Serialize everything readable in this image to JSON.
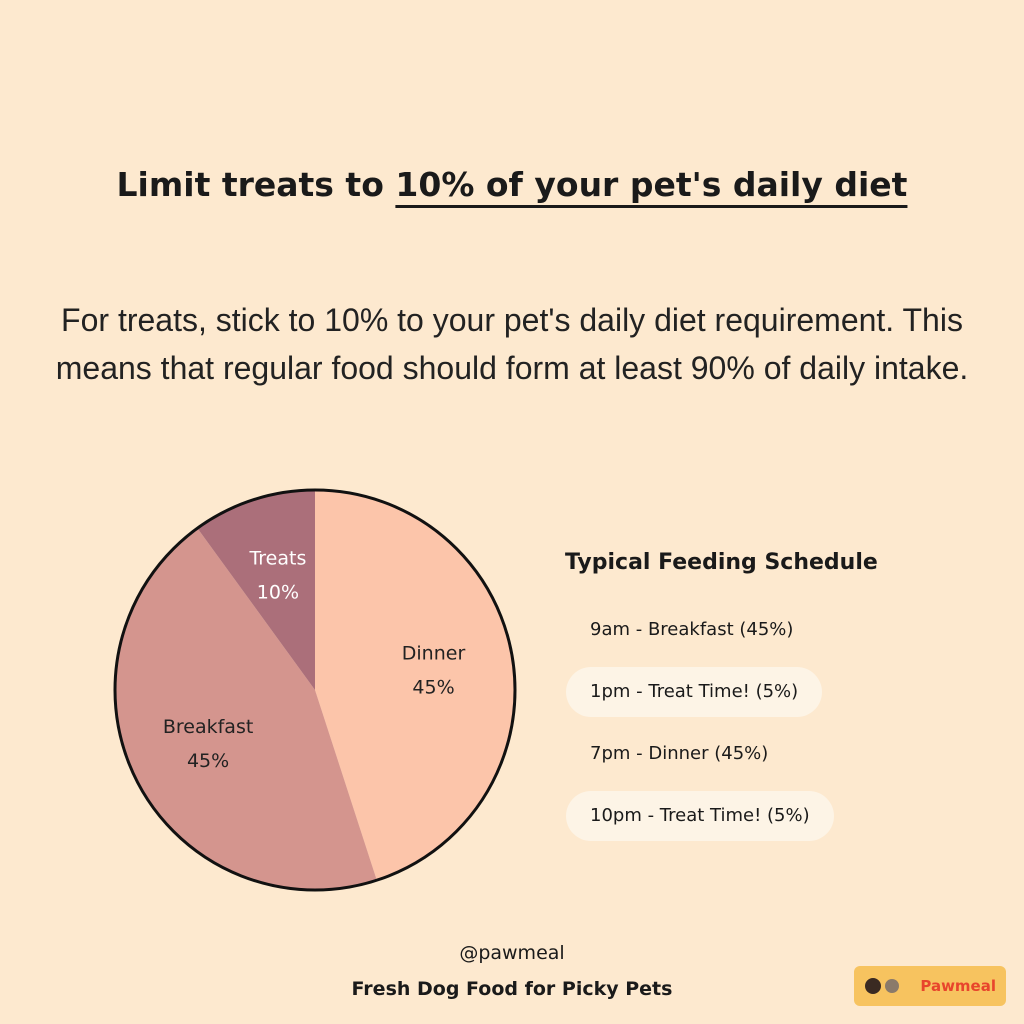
{
  "header": {
    "title_start": "Limit treats to",
    "title_emphasis": "10% of your pet's daily diet"
  },
  "intro": "For treats, stick to 10% to your pet's daily diet requirement. This means that regular food should form at least 90% of daily intake.",
  "chart_data": {
    "type": "pie",
    "categories": [
      "Dinner",
      "Breakfast",
      "Treats"
    ],
    "values": [
      45,
      45,
      10
    ],
    "value_labels": [
      "45%",
      "45%",
      "10%"
    ],
    "colors": [
      "#fcc5aa",
      "#d4958e",
      "#ab6f7a"
    ],
    "label_colors": [
      "#222222",
      "#222222",
      "#ffffff"
    ]
  },
  "schedule": {
    "title": "Typical Feeding Schedule",
    "items": [
      "9am - Breakfast (45%)",
      "1pm - Treat Time! (5%)",
      "7pm - Dinner (45%)",
      "10pm - Treat Time! (5%)"
    ]
  },
  "footer": {
    "handle": "@pawmeal",
    "tagline": "Fresh Dog Food for Picky Pets",
    "logo": "Pawmeal"
  }
}
